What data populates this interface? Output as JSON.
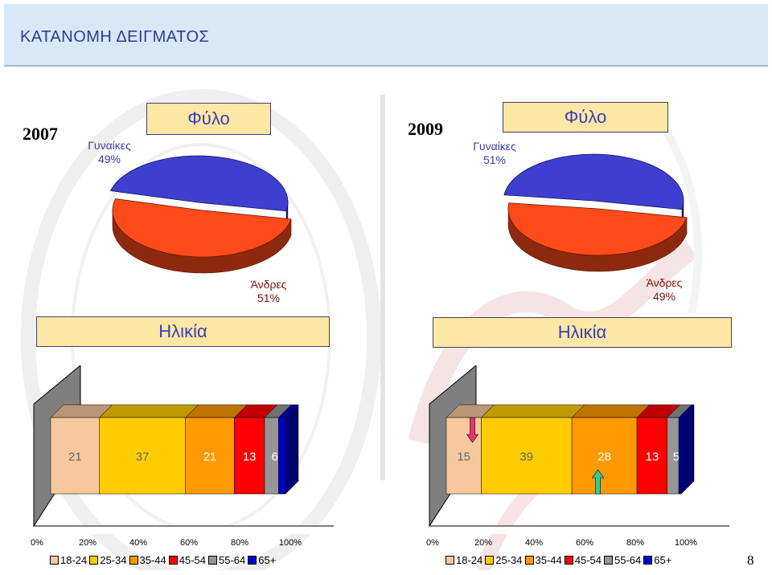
{
  "header": {
    "title": "ΚΑΤΑΝΟΜΗ ΔΕΙΓΜΑΤΟΣ"
  },
  "colors": {
    "header_bg": "#d9e8f7",
    "box_bg": "#fde7a4",
    "female": "#3f3fcf",
    "male": "#ff4a1a",
    "age_18_24": "#f7c89d",
    "age_25_34": "#ffcc00",
    "age_35_44": "#ff9900",
    "age_45_54": "#ff0000",
    "age_55_64": "#969696",
    "age_65_plus": "#0000cc"
  },
  "page_number": "8",
  "chart_data": [
    {
      "type": "pie",
      "year": "2007",
      "title": "Φύλο",
      "slices": [
        {
          "name": "Γυναίκες",
          "value": 49,
          "label": "49%"
        },
        {
          "name": "Άνδρες",
          "value": 51,
          "label": "51%"
        }
      ]
    },
    {
      "type": "pie",
      "year": "2009",
      "title": "Φύλο",
      "slices": [
        {
          "name": "Γυναίκες",
          "value": 51,
          "label": "51%"
        },
        {
          "name": "Άνδρες",
          "value": 49,
          "label": "49%"
        }
      ]
    },
    {
      "type": "bar",
      "orientation": "stacked-100-horizontal",
      "title": "Ηλικία",
      "series": [
        {
          "name": "18-24",
          "value": 21
        },
        {
          "name": "25-34",
          "value": 37
        },
        {
          "name": "35-44",
          "value": 21
        },
        {
          "name": "45-54",
          "value": 13
        },
        {
          "name": "55-64",
          "value": 6
        },
        {
          "name": "65+",
          "value": 3
        }
      ],
      "xticks": [
        "0%",
        "20%",
        "40%",
        "60%",
        "80%",
        "100%"
      ],
      "xlim": [
        0,
        100
      ],
      "legend": "bottom"
    },
    {
      "type": "bar",
      "orientation": "stacked-100-horizontal",
      "title": "Ηλικία",
      "series": [
        {
          "name": "18-24",
          "value": 15
        },
        {
          "name": "25-34",
          "value": 39
        },
        {
          "name": "35-44",
          "value": 28
        },
        {
          "name": "45-54",
          "value": 13
        },
        {
          "name": "55-64",
          "value": 5
        },
        {
          "name": "65+",
          "value": 1
        }
      ],
      "annotations": [
        {
          "segment": "18-24",
          "arrow": "down",
          "color": "#e8336e"
        },
        {
          "segment": "35-44",
          "arrow": "up",
          "color": "#33cc99"
        }
      ],
      "xticks": [
        "0%",
        "20%",
        "40%",
        "60%",
        "80%",
        "100%"
      ],
      "xlim": [
        0,
        100
      ],
      "legend": "bottom"
    }
  ]
}
